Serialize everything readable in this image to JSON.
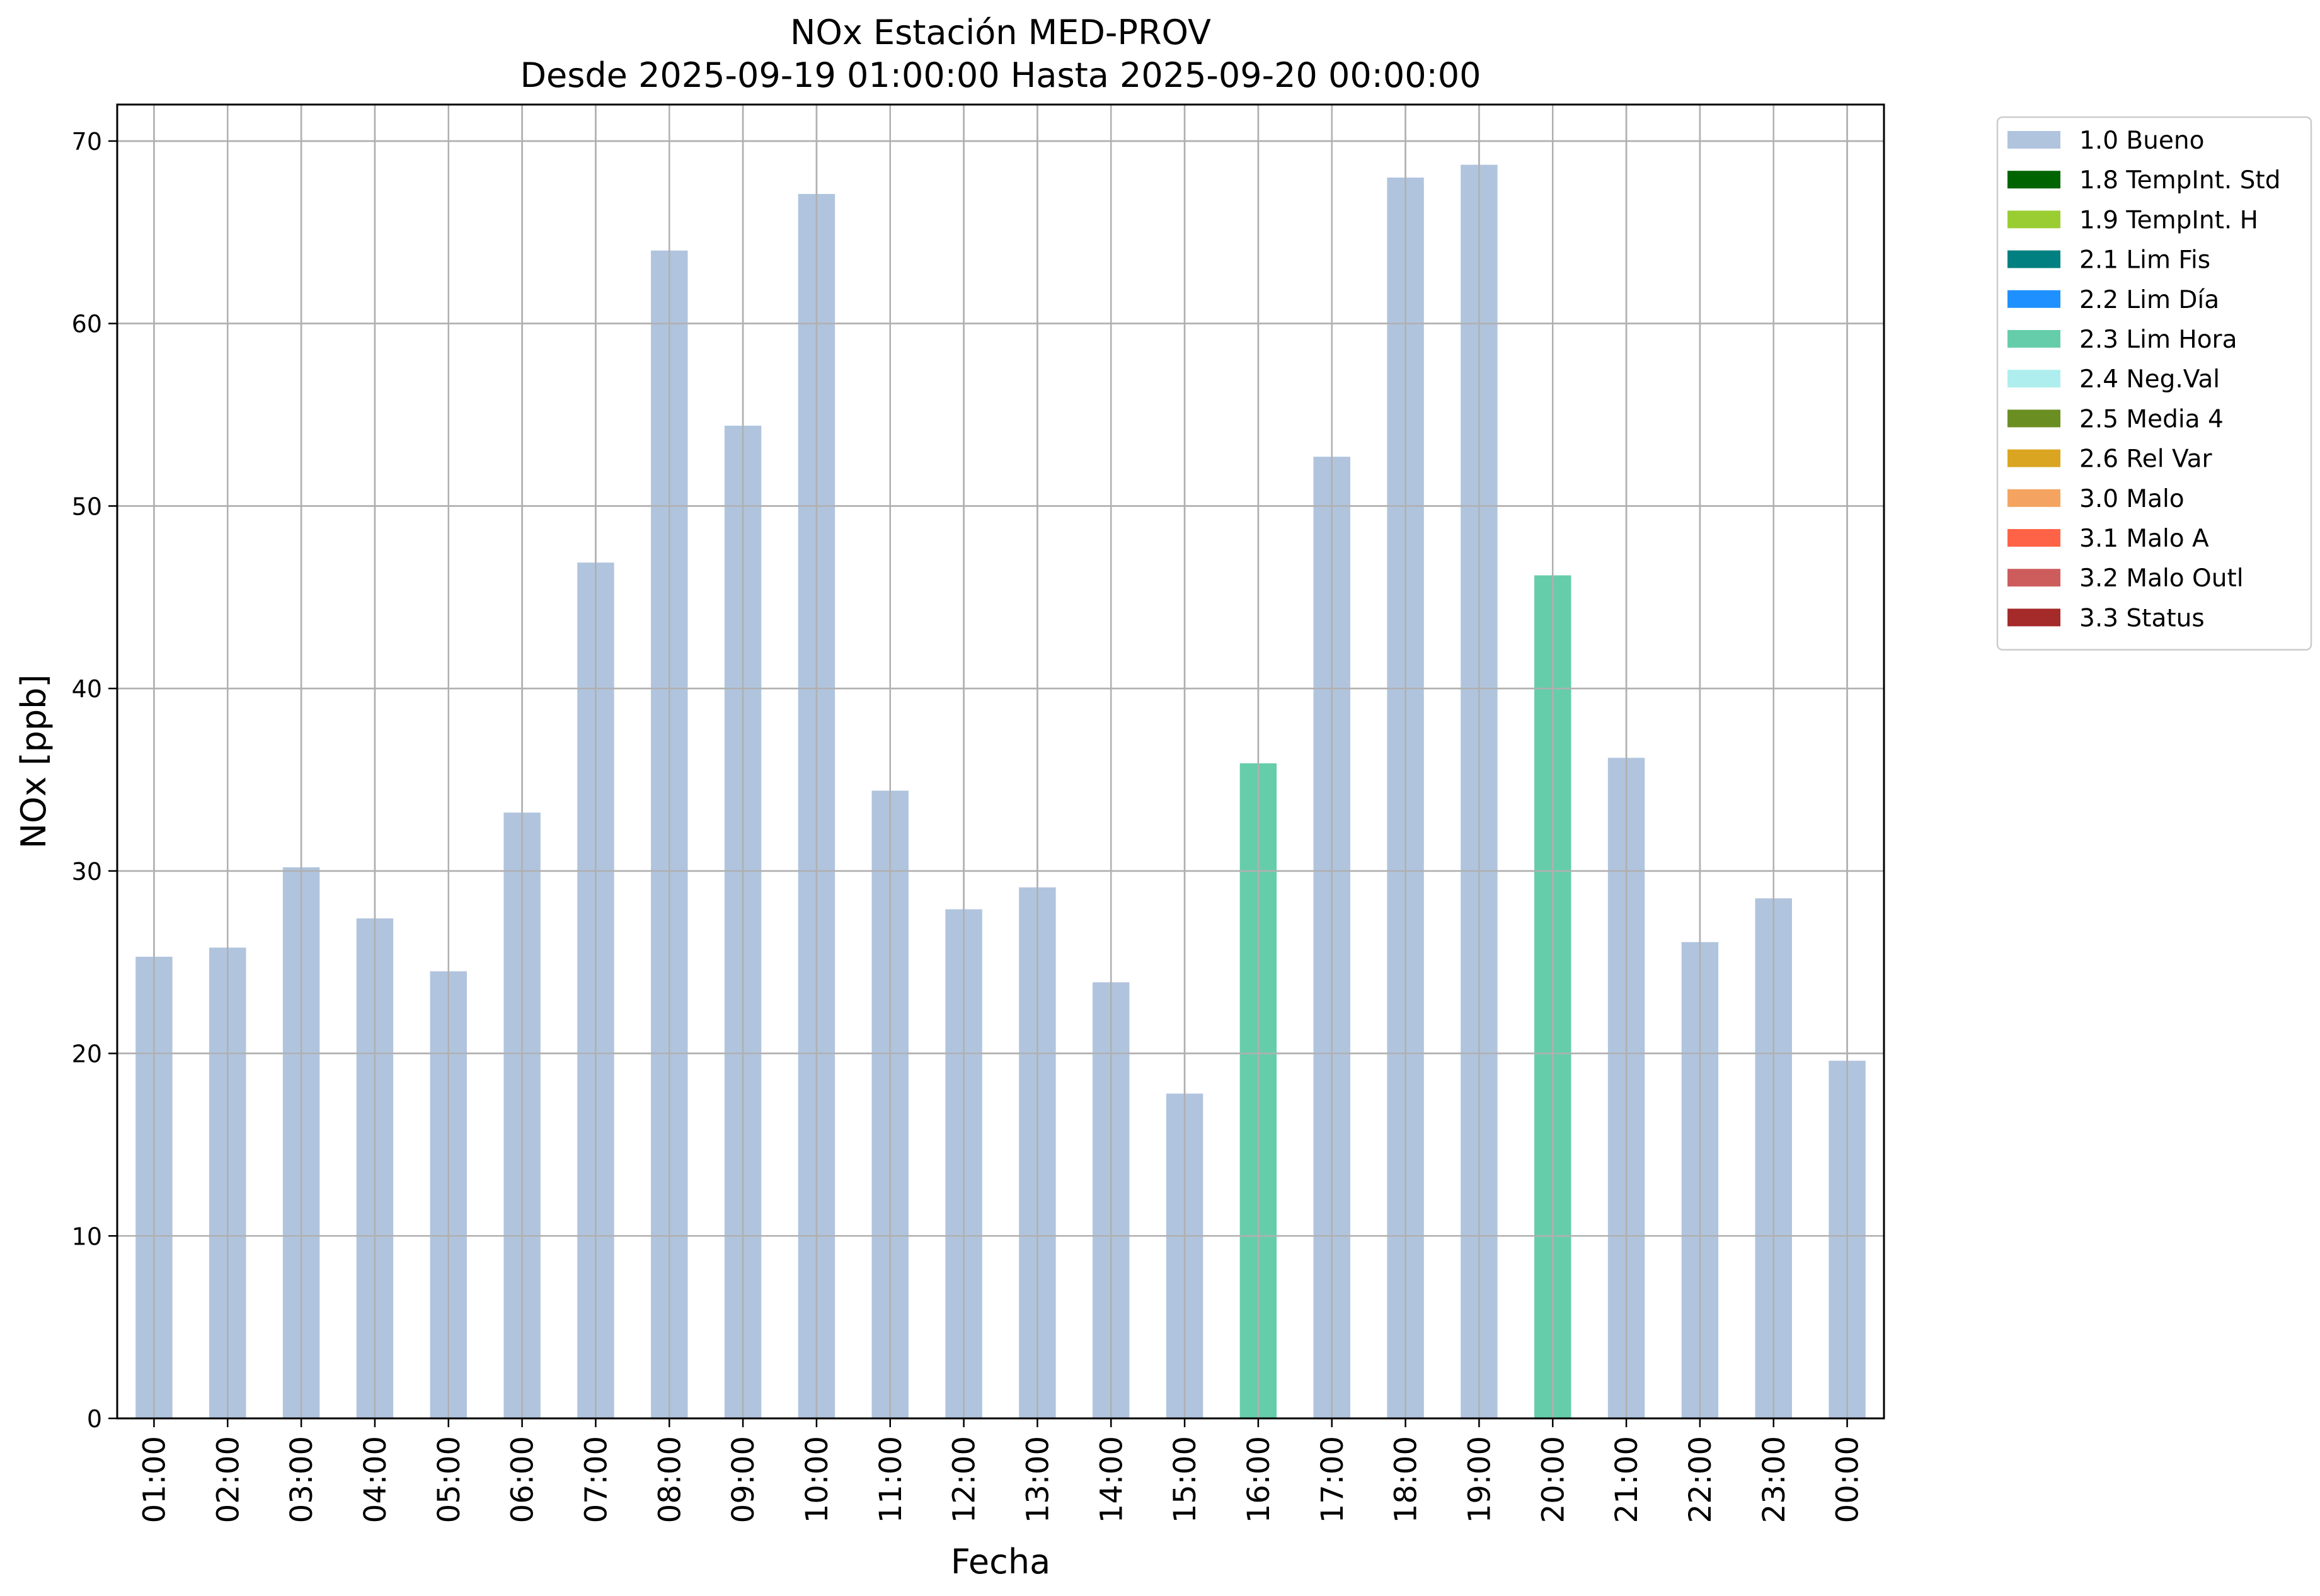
{
  "chart_data": {
    "type": "bar",
    "title": "NOx Estación MED-PROV",
    "subtitle": "Desde 2025-09-19 01:00:00 Hasta 2025-09-20 00:00:00",
    "xlabel": "Fecha",
    "ylabel": "NOx [ppb]",
    "ylim": [
      0,
      72
    ],
    "yticks": [
      0,
      10,
      20,
      30,
      40,
      50,
      60,
      70
    ],
    "grid": true,
    "legend_position": "outside-top-right",
    "categories": [
      "01:00",
      "02:00",
      "03:00",
      "04:00",
      "05:00",
      "06:00",
      "07:00",
      "08:00",
      "09:00",
      "10:00",
      "11:00",
      "12:00",
      "13:00",
      "14:00",
      "15:00",
      "16:00",
      "17:00",
      "18:00",
      "19:00",
      "20:00",
      "21:00",
      "22:00",
      "23:00",
      "00:00"
    ],
    "values": [
      25.3,
      25.8,
      30.2,
      27.4,
      24.5,
      33.2,
      46.9,
      64.0,
      54.4,
      67.1,
      34.4,
      27.9,
      29.1,
      23.9,
      17.8,
      35.9,
      52.7,
      68.0,
      68.7,
      46.2,
      36.2,
      26.1,
      28.5,
      19.6
    ],
    "flags": [
      "1.0",
      "1.0",
      "1.0",
      "1.0",
      "1.0",
      "1.0",
      "1.0",
      "1.0",
      "1.0",
      "1.0",
      "1.0",
      "1.0",
      "1.0",
      "1.0",
      "1.0",
      "2.3",
      "1.0",
      "1.0",
      "1.0",
      "2.3",
      "1.0",
      "1.0",
      "1.0",
      "1.0"
    ],
    "legend": [
      {
        "code": "1.0",
        "label": "1.0 Bueno",
        "color": "#b0c4de"
      },
      {
        "code": "1.8",
        "label": "1.8 TempInt. Std",
        "color": "#006400"
      },
      {
        "code": "1.9",
        "label": "1.9 TempInt. H",
        "color": "#9acd32"
      },
      {
        "code": "2.1",
        "label": "2.1 Lim Fis",
        "color": "#008080"
      },
      {
        "code": "2.2",
        "label": "2.2 Lim Día",
        "color": "#1e90ff"
      },
      {
        "code": "2.3",
        "label": "2.3 Lim Hora",
        "color": "#66cdaa"
      },
      {
        "code": "2.4",
        "label": "2.4 Neg.Val",
        "color": "#afeeee"
      },
      {
        "code": "2.5",
        "label": "2.5 Media 4",
        "color": "#6b8e23"
      },
      {
        "code": "2.6",
        "label": "2.6 Rel Var",
        "color": "#daa520"
      },
      {
        "code": "3.0",
        "label": "3.0 Malo",
        "color": "#f4a460"
      },
      {
        "code": "3.1",
        "label": "3.1 Malo A",
        "color": "#ff6347"
      },
      {
        "code": "3.2",
        "label": "3.2 Malo Outl",
        "color": "#cd5c5c"
      },
      {
        "code": "3.3",
        "label": "3.3 Status",
        "color": "#a52a2a"
      }
    ]
  }
}
